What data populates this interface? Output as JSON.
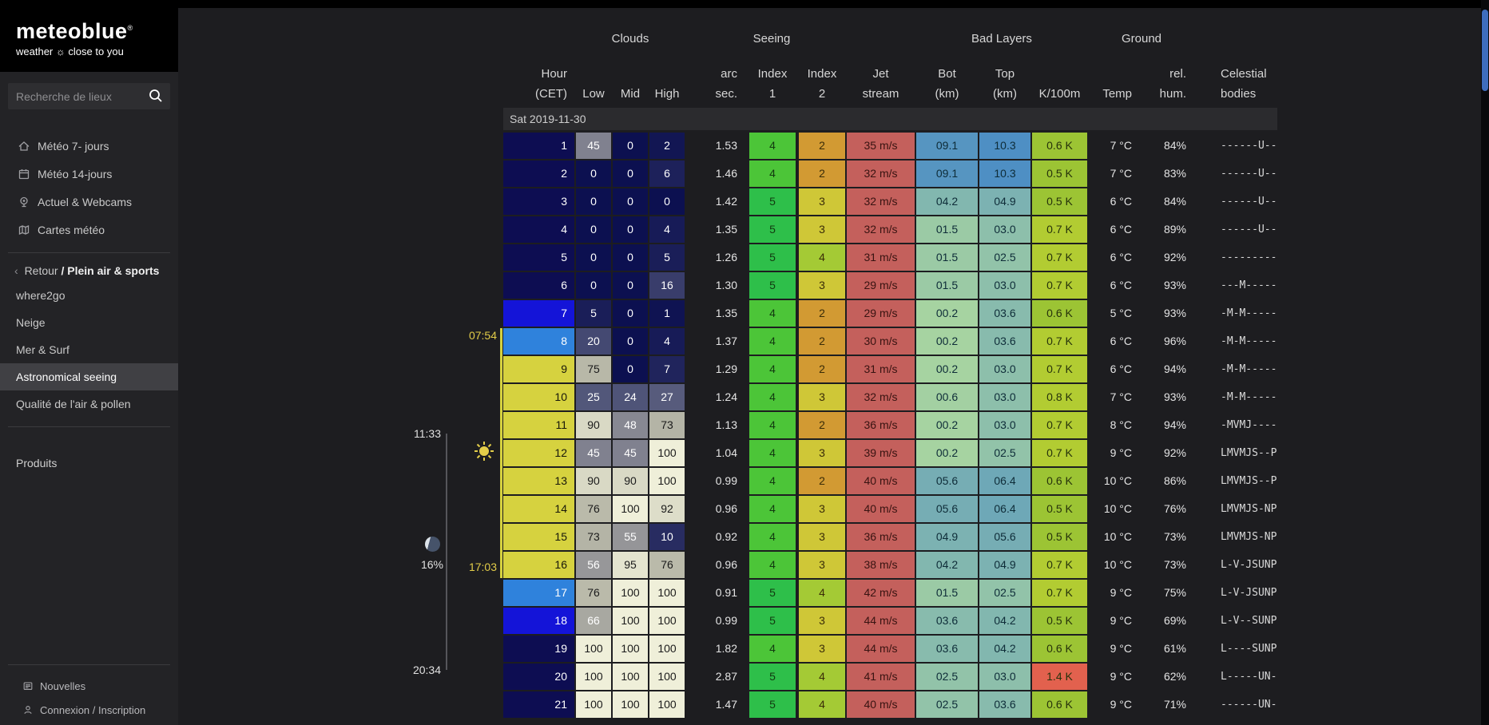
{
  "sidebar": {
    "logo": {
      "brand": "meteoblue",
      "registered": "®",
      "tagline_left": "weather",
      "sun_glyph": "☼",
      "tagline_right": "close to you"
    },
    "search": {
      "placeholder": "Recherche de lieux"
    },
    "nav_top": [
      {
        "label": "Météo 7- jours",
        "icon": "home-icon"
      },
      {
        "label": "Météo 14-jours",
        "icon": "calendar-icon"
      },
      {
        "label": "Actuel & Webcams",
        "icon": "webcam-icon"
      },
      {
        "label": "Cartes météo",
        "icon": "map-icon"
      }
    ],
    "breadcrumb": {
      "chevron": "‹",
      "back": "Retour",
      "section": "/ Plein air & sports"
    },
    "nav_section": [
      {
        "label": "where2go",
        "active": false
      },
      {
        "label": "Neige",
        "active": false
      },
      {
        "label": "Mer & Surf",
        "active": false
      },
      {
        "label": "Astronomical seeing",
        "active": true
      },
      {
        "label": "Qualité de l'air & pollen",
        "active": false
      }
    ],
    "products_label": "Produits",
    "nav_bottom": [
      {
        "label": "Nouvelles",
        "icon": "news-icon"
      },
      {
        "label": "Connexion / Inscription",
        "icon": "user-icon"
      }
    ]
  },
  "timeline": {
    "sunrise": "07:54",
    "sunset": "17:03",
    "moonrise": "11:33",
    "moonset": "20:34",
    "moon_illumination": "16%"
  },
  "table": {
    "date": "Sat 2019-11-30",
    "groups": {
      "clouds": "Clouds",
      "seeing": "Seeing",
      "bad": "Bad Layers",
      "ground": "Ground"
    },
    "headers": {
      "hour1": "Hour",
      "hour2": "(CET)",
      "low": "Low",
      "mid": "Mid",
      "high": "High",
      "arc1": "arc",
      "arc2": "sec.",
      "i1a": "Index",
      "i1b": "1",
      "i2a": "Index",
      "i2b": "2",
      "jet1": "Jet",
      "jet2": "stream",
      "bot1": "Bot",
      "bot2": "(km)",
      "top1": "Top",
      "top2": "(km)",
      "k": "K/100m",
      "temp": "Temp",
      "hum1": "rel.",
      "hum2": "hum.",
      "cel1": "Celestial",
      "cel2": "bodies"
    },
    "rows": [
      {
        "hour": 1,
        "sky": "night",
        "low": 45,
        "mid": 0,
        "high": 2,
        "arcsec": "1.53",
        "index1": 4,
        "index2": 2,
        "jet": "35 m/s",
        "bot": "09.1",
        "top": "10.3",
        "k": "0.6 K",
        "temp": "7 °C",
        "hum": "84%",
        "bodies": "------U--"
      },
      {
        "hour": 2,
        "sky": "night",
        "low": 0,
        "mid": 0,
        "high": 6,
        "arcsec": "1.46",
        "index1": 4,
        "index2": 2,
        "jet": "32 m/s",
        "bot": "09.1",
        "top": "10.3",
        "k": "0.5 K",
        "temp": "7 °C",
        "hum": "83%",
        "bodies": "------U--"
      },
      {
        "hour": 3,
        "sky": "night",
        "low": 0,
        "mid": 0,
        "high": 0,
        "arcsec": "1.42",
        "index1": 5,
        "index2": 3,
        "jet": "32 m/s",
        "bot": "04.2",
        "top": "04.9",
        "k": "0.5 K",
        "temp": "6 °C",
        "hum": "84%",
        "bodies": "------U--"
      },
      {
        "hour": 4,
        "sky": "night",
        "low": 0,
        "mid": 0,
        "high": 4,
        "arcsec": "1.35",
        "index1": 5,
        "index2": 3,
        "jet": "32 m/s",
        "bot": "01.5",
        "top": "03.0",
        "k": "0.7 K",
        "temp": "6 °C",
        "hum": "89%",
        "bodies": "------U--"
      },
      {
        "hour": 5,
        "sky": "night",
        "low": 0,
        "mid": 0,
        "high": 5,
        "arcsec": "1.26",
        "index1": 5,
        "index2": 4,
        "jet": "31 m/s",
        "bot": "01.5",
        "top": "02.5",
        "k": "0.7 K",
        "temp": "6 °C",
        "hum": "92%",
        "bodies": "---------"
      },
      {
        "hour": 6,
        "sky": "night",
        "low": 0,
        "mid": 0,
        "high": 16,
        "arcsec": "1.30",
        "index1": 5,
        "index2": 3,
        "jet": "29 m/s",
        "bot": "01.5",
        "top": "03.0",
        "k": "0.7 K",
        "temp": "6 °C",
        "hum": "93%",
        "bodies": "---M-----"
      },
      {
        "hour": 7,
        "sky": "deep",
        "low": 5,
        "mid": 0,
        "high": 1,
        "arcsec": "1.35",
        "index1": 4,
        "index2": 2,
        "jet": "29 m/s",
        "bot": "00.2",
        "top": "03.6",
        "k": "0.6 K",
        "temp": "5 °C",
        "hum": "93%",
        "bodies": "-M-M-----"
      },
      {
        "hour": 8,
        "sky": "light",
        "low": 20,
        "mid": 0,
        "high": 4,
        "arcsec": "1.37",
        "index1": 4,
        "index2": 2,
        "jet": "30 m/s",
        "bot": "00.2",
        "top": "03.6",
        "k": "0.7 K",
        "temp": "6 °C",
        "hum": "96%",
        "bodies": "-M-M-----"
      },
      {
        "hour": 9,
        "sky": "day",
        "low": 75,
        "mid": 0,
        "high": 7,
        "arcsec": "1.29",
        "index1": 4,
        "index2": 2,
        "jet": "31 m/s",
        "bot": "00.2",
        "top": "03.0",
        "k": "0.7 K",
        "temp": "6 °C",
        "hum": "94%",
        "bodies": "-M-M-----"
      },
      {
        "hour": 10,
        "sky": "day",
        "low": 25,
        "mid": 24,
        "high": 27,
        "arcsec": "1.24",
        "index1": 4,
        "index2": 3,
        "jet": "32 m/s",
        "bot": "00.6",
        "top": "03.0",
        "k": "0.8 K",
        "temp": "7 °C",
        "hum": "93%",
        "bodies": "-M-M-----"
      },
      {
        "hour": 11,
        "sky": "day",
        "low": 90,
        "mid": 48,
        "high": 73,
        "arcsec": "1.13",
        "index1": 4,
        "index2": 2,
        "jet": "36 m/s",
        "bot": "00.2",
        "top": "03.0",
        "k": "0.7 K",
        "temp": "8 °C",
        "hum": "94%",
        "bodies": "-MVMJ----"
      },
      {
        "hour": 12,
        "sky": "day",
        "low": 45,
        "mid": 45,
        "high": 100,
        "arcsec": "1.04",
        "index1": 4,
        "index2": 3,
        "jet": "39 m/s",
        "bot": "00.2",
        "top": "02.5",
        "k": "0.7 K",
        "temp": "9 °C",
        "hum": "92%",
        "bodies": "LMVMJS--P"
      },
      {
        "hour": 13,
        "sky": "day",
        "low": 90,
        "mid": 90,
        "high": 100,
        "arcsec": "0.99",
        "index1": 4,
        "index2": 2,
        "jet": "40 m/s",
        "bot": "05.6",
        "top": "06.4",
        "k": "0.6 K",
        "temp": "10 °C",
        "hum": "86%",
        "bodies": "LMVMJS--P"
      },
      {
        "hour": 14,
        "sky": "day",
        "low": 76,
        "mid": 100,
        "high": 92,
        "arcsec": "0.96",
        "index1": 4,
        "index2": 3,
        "jet": "40 m/s",
        "bot": "05.6",
        "top": "06.4",
        "k": "0.5 K",
        "temp": "10 °C",
        "hum": "76%",
        "bodies": "LMVMJS-NP"
      },
      {
        "hour": 15,
        "sky": "day",
        "low": 73,
        "mid": 55,
        "high": 10,
        "arcsec": "0.92",
        "index1": 4,
        "index2": 3,
        "jet": "36 m/s",
        "bot": "04.9",
        "top": "05.6",
        "k": "0.5 K",
        "temp": "10 °C",
        "hum": "73%",
        "bodies": "LMVMJS-NP"
      },
      {
        "hour": 16,
        "sky": "day",
        "low": 56,
        "mid": 95,
        "high": 76,
        "arcsec": "0.96",
        "index1": 4,
        "index2": 3,
        "jet": "38 m/s",
        "bot": "04.2",
        "top": "04.9",
        "k": "0.7 K",
        "temp": "10 °C",
        "hum": "73%",
        "bodies": "L-V-JSUNP"
      },
      {
        "hour": 17,
        "sky": "light",
        "low": 76,
        "mid": 100,
        "high": 100,
        "arcsec": "0.91",
        "index1": 5,
        "index2": 4,
        "jet": "42 m/s",
        "bot": "01.5",
        "top": "02.5",
        "k": "0.7 K",
        "temp": "9 °C",
        "hum": "75%",
        "bodies": "L-V-JSUNP"
      },
      {
        "hour": 18,
        "sky": "deep",
        "low": 66,
        "mid": 100,
        "high": 100,
        "arcsec": "0.99",
        "index1": 5,
        "index2": 3,
        "jet": "44 m/s",
        "bot": "03.6",
        "top": "04.2",
        "k": "0.5 K",
        "temp": "9 °C",
        "hum": "69%",
        "bodies": "L-V--SUNP"
      },
      {
        "hour": 19,
        "sky": "night",
        "low": 100,
        "mid": 100,
        "high": 100,
        "arcsec": "1.82",
        "index1": 4,
        "index2": 3,
        "jet": "44 m/s",
        "bot": "03.6",
        "top": "04.2",
        "k": "0.6 K",
        "temp": "9 °C",
        "hum": "61%",
        "bodies": "L----SUNP"
      },
      {
        "hour": 20,
        "sky": "night",
        "low": 100,
        "mid": 100,
        "high": 100,
        "arcsec": "2.87",
        "index1": 5,
        "index2": 4,
        "jet": "41 m/s",
        "bot": "02.5",
        "top": "03.0",
        "k": "1.4 K",
        "temp": "9 °C",
        "hum": "62%",
        "bodies": "L-----UN-"
      },
      {
        "hour": 21,
        "sky": "night",
        "low": 100,
        "mid": 100,
        "high": 100,
        "arcsec": "1.47",
        "index1": 5,
        "index2": 4,
        "jet": "40 m/s",
        "bot": "02.5",
        "top": "03.6",
        "k": "0.6 K",
        "temp": "9 °C",
        "hum": "71%",
        "bodies": "------UN-"
      }
    ]
  },
  "colors": {
    "accent_day": "#d6d23f",
    "accent_night": "#0d0d52",
    "accent_twilight": "#2f82dc",
    "index_good": "#3ec23e",
    "jet_bg": "#c4605c",
    "k_warn": "#e2614e"
  }
}
